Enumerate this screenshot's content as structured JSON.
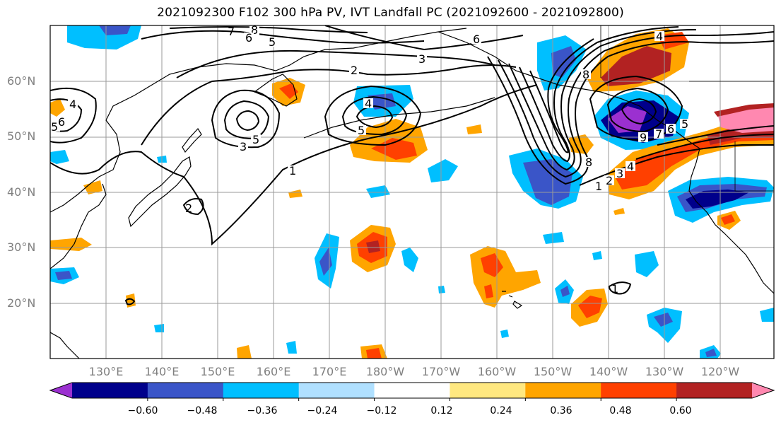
{
  "title": "2021092300 F102 300 hPa PV, IVT Landfall PC (2021092600 - 2021092800)",
  "lat_labels": [
    "60°N",
    "50°N",
    "40°N",
    "30°N",
    "20°N"
  ],
  "lon_labels": [
    "130°E",
    "140°E",
    "150°E",
    "160°E",
    "170°E",
    "180°W",
    "170°W",
    "160°W",
    "150°W",
    "140°W",
    "130°W",
    "120°W"
  ],
  "colorbar": {
    "ticks": [
      "−0.60",
      "−0.48",
      "−0.36",
      "−0.24",
      "−0.12",
      "0.12",
      "0.24",
      "0.36",
      "0.48",
      "0.60"
    ],
    "colors": [
      "#9b30d0",
      "#00008b",
      "#3a55c8",
      "#00bfff",
      "#b0e0ff",
      "#ffffff",
      "#ffe880",
      "#ffa500",
      "#ff4000",
      "#b22222",
      "#ff88b0"
    ]
  },
  "contour_labels": [
    "8",
    "7",
    "6",
    "5",
    "3",
    "2",
    "4",
    "5",
    "1",
    "4",
    "5",
    "6",
    "5",
    "3",
    "1",
    "2",
    "6",
    "8",
    "9",
    "7",
    "6",
    "5",
    "4",
    "3",
    "2",
    "1",
    "8",
    "4"
  ]
}
